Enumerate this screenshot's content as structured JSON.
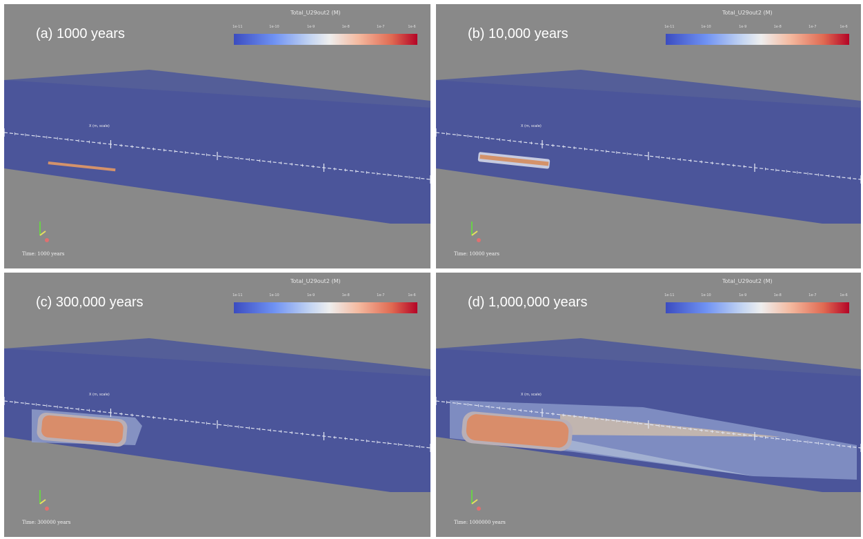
{
  "panels": [
    {
      "id": "a",
      "caption": "(a) 1000 years",
      "colorbar_title": "Total_U29out2 (M)",
      "colorbar_ticks": [
        "1e-11",
        "1e-10",
        "1e-9",
        "1e-8",
        "1e-7",
        "1e-6"
      ],
      "ruler_label": "X (m, scale)",
      "time_label": "Time: 1000 years"
    },
    {
      "id": "b",
      "caption": "(b) 10,000 years",
      "colorbar_title": "Total_U29out2 (M)",
      "colorbar_ticks": [
        "1e-11",
        "1e-10",
        "1e-9",
        "1e-8",
        "1e-7",
        "1e-6"
      ],
      "ruler_label": "X (m, scale)",
      "time_label": "Time: 10000 years"
    },
    {
      "id": "c",
      "caption": "(c) 300,000 years",
      "colorbar_title": "Total_U29out2 (M)",
      "colorbar_ticks": [
        "1e-11",
        "1e-10",
        "1e-9",
        "1e-8",
        "1e-7",
        "1e-6"
      ],
      "ruler_label": "X (m, scale)",
      "time_label": "Time: 300000 years"
    },
    {
      "id": "d",
      "caption": "(d) 1,000,000 years",
      "colorbar_title": "Total_U29out2 (M)",
      "colorbar_ticks": [
        "1e-11",
        "1e-10",
        "1e-9",
        "1e-8",
        "1e-7",
        "1e-6"
      ],
      "ruler_label": "X (m, scale)",
      "time_label": "Time: 1000000 years"
    }
  ],
  "colors": {
    "background": "#898989",
    "domain_top": "#545e98",
    "domain_front": "#4b559a",
    "plume_core": "#dc8e68",
    "plume_halo": "#b8c6dc",
    "colormap_low": "#3b4cc0",
    "colormap_mid": "#eeeeee",
    "colormap_high": "#b40426"
  },
  "icons": {
    "orientation_axes": "axes-triad-icon"
  }
}
